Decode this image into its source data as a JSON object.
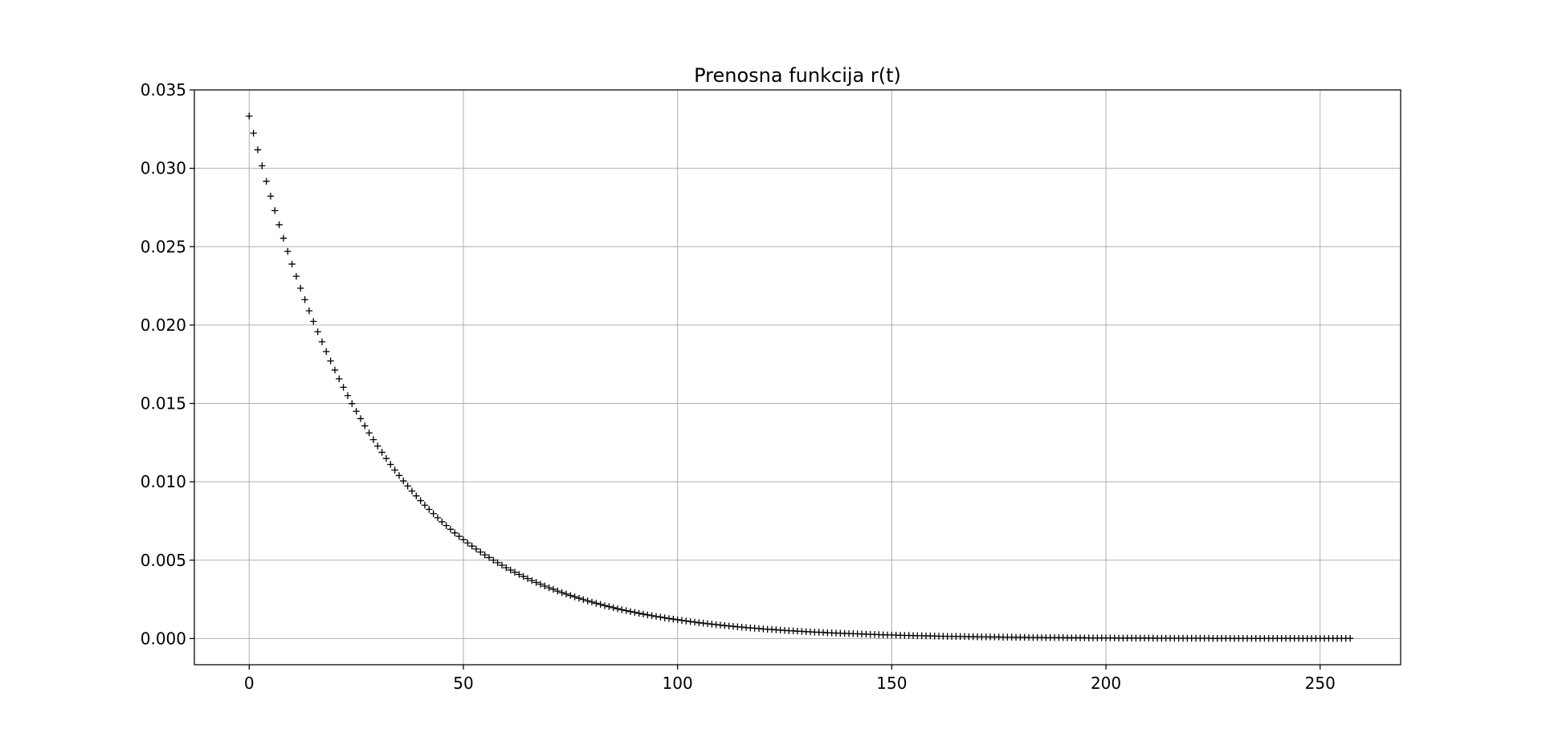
{
  "chart_data": {
    "type": "scatter",
    "title": "Prenosna funkcija r(t)",
    "xlabel": "",
    "ylabel": "",
    "marker": "+",
    "marker_color": "#000000",
    "grid": true,
    "xlim": [
      -12.8,
      268.8
    ],
    "ylim": [
      -0.00167,
      0.035
    ],
    "xticks": [
      0,
      50,
      100,
      150,
      200,
      250
    ],
    "xtick_labels": [
      "0",
      "50",
      "100",
      "150",
      "200",
      "250"
    ],
    "yticks": [
      0.0,
      0.005,
      0.01,
      0.015,
      0.02,
      0.025,
      0.03,
      0.035
    ],
    "ytick_labels": [
      "0.000",
      "0.005",
      "0.010",
      "0.015",
      "0.020",
      "0.025",
      "0.030",
      "0.035"
    ],
    "series": [
      {
        "x_start": 0,
        "x_step": 1,
        "values": [
          0.03333,
          0.03224,
          0.03118,
          0.03016,
          0.02917,
          0.02822,
          0.0273,
          0.0264,
          0.02554,
          0.0247,
          0.02389,
          0.02311,
          0.02235,
          0.02162,
          0.02091,
          0.02023,
          0.01957,
          0.01893,
          0.01831,
          0.01771,
          0.01713,
          0.01657,
          0.01603,
          0.0155,
          0.01499,
          0.0145,
          0.01403,
          0.01357,
          0.01312,
          0.01269,
          0.01228,
          0.01188,
          0.01149,
          0.01111,
          0.01075,
          0.0104,
          0.01006,
          0.00973,
          0.00941,
          0.0091,
          0.0088,
          0.00851,
          0.00824,
          0.00797,
          0.00771,
          0.00745,
          0.00721,
          0.00697,
          0.00674,
          0.00652,
          0.00631,
          0.0061,
          0.0059,
          0.00571,
          0.00552,
          0.00534,
          0.00517,
          0.005,
          0.00484,
          0.00468,
          0.00452,
          0.00437,
          0.00423,
          0.00409,
          0.00396,
          0.00383,
          0.0037,
          0.00358,
          0.00347,
          0.00335,
          0.00324,
          0.00314,
          0.00303,
          0.00293,
          0.00284,
          0.00275,
          0.00266,
          0.00257,
          0.00249,
          0.0024,
          0.00233,
          0.00225,
          0.00218,
          0.0021,
          0.00204,
          0.00197,
          0.0019,
          0.00184,
          0.00178,
          0.00172,
          0.00167,
          0.00161,
          0.00156,
          0.00151,
          0.00146,
          0.00141,
          0.00137,
          0.00132,
          0.00128,
          0.00124,
          0.0012,
          0.00116,
          0.00112,
          0.00108,
          0.00105,
          0.00101,
          0.00098,
          0.00095,
          0.00092,
          0.00089,
          0.00086,
          0.00083,
          0.0008,
          0.00078,
          0.00075,
          0.00073,
          0.0007,
          0.00068,
          0.00066,
          0.00064,
          0.00061,
          0.00059,
          0.00058,
          0.00056,
          0.00054,
          0.00052,
          0.0005,
          0.00049,
          0.00047,
          0.00046,
          0.00044,
          0.00043,
          0.00041,
          0.0004,
          0.00039,
          0.00037,
          0.00036,
          0.00035,
          0.00034,
          0.00033,
          0.00032,
          0.00031,
          0.0003,
          0.00029,
          0.00028,
          0.00027,
          0.00026,
          0.00025,
          0.00024,
          0.00023,
          0.00023,
          0.00022,
          0.00021,
          0.0002,
          0.0002,
          0.00019,
          0.00018,
          0.00018,
          0.00017,
          0.00017,
          0.00016,
          0.00015,
          0.00015,
          0.00014,
          0.00014,
          0.00014,
          0.00013,
          0.00013,
          0.00012,
          0.00012,
          0.00011,
          0.00011,
          0.00011,
          0.0001,
          0.0001,
          0.0001,
          9e-05,
          9e-05,
          9e-05,
          8e-05,
          8e-05,
          8e-05,
          7e-05,
          7e-05,
          7e-05,
          7e-05,
          6e-05,
          6e-05,
          6e-05,
          6e-05,
          6e-05,
          5e-05,
          5e-05,
          5e-05,
          5e-05,
          5e-05,
          4e-05,
          4e-05,
          4e-05,
          4e-05,
          4e-05,
          4e-05,
          4e-05,
          3e-05,
          3e-05,
          3e-05,
          3e-05,
          3e-05,
          3e-05,
          3e-05,
          3e-05,
          3e-05,
          2e-05,
          2e-05,
          2e-05,
          2e-05,
          2e-05,
          2e-05,
          2e-05,
          2e-05,
          2e-05,
          2e-05,
          2e-05,
          2e-05,
          2e-05,
          1e-05,
          1e-05,
          1e-05,
          1e-05,
          1e-05,
          1e-05,
          1e-05,
          1e-05,
          1e-05,
          1e-05,
          1e-05,
          1e-05,
          1e-05,
          1e-05,
          1e-05,
          1e-05,
          1e-05,
          1e-05,
          1e-05,
          1e-05,
          1e-05,
          1e-05,
          1e-05,
          1e-05,
          1e-05,
          1e-05,
          1e-05,
          1e-05,
          1e-05,
          1e-05,
          1e-05,
          1e-05,
          1e-05
        ]
      }
    ]
  }
}
